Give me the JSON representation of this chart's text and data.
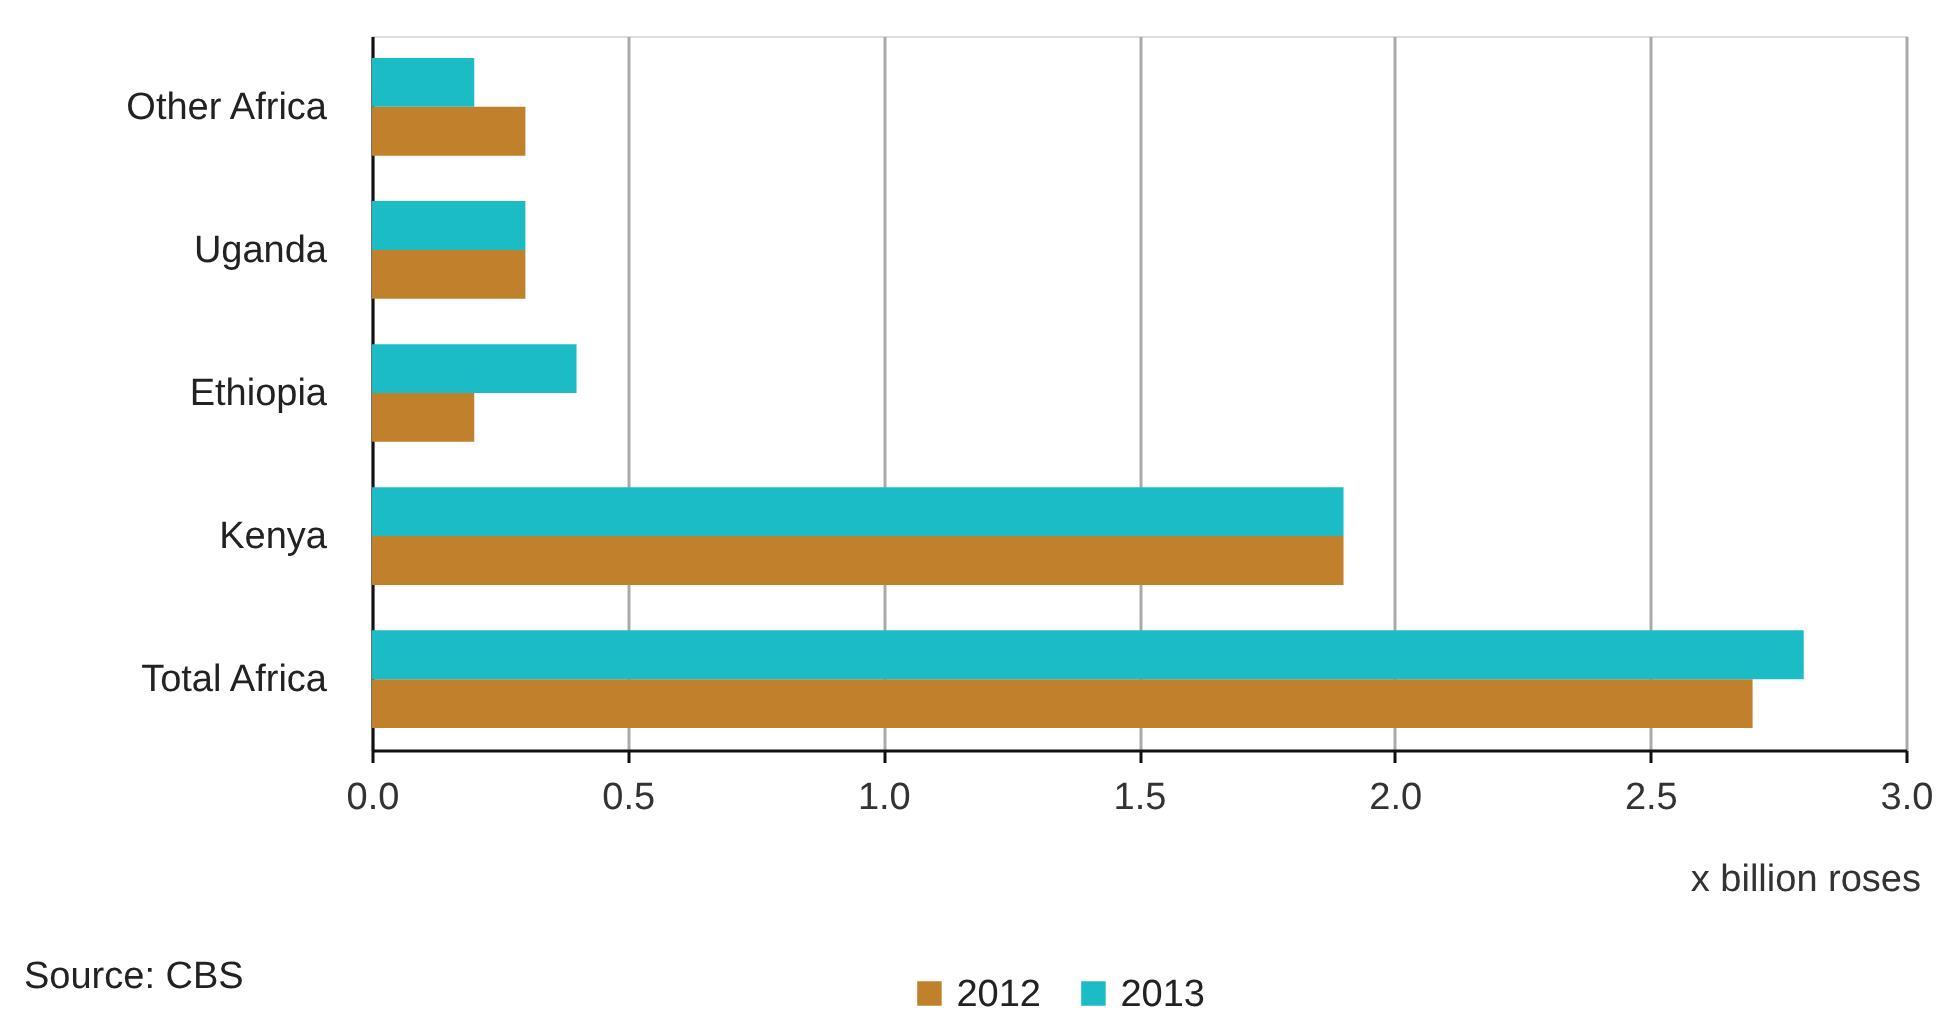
{
  "chart_data": {
    "type": "bar",
    "orientation": "horizontal",
    "categories": [
      "Other Africa",
      "Uganda",
      "Ethiopia",
      "Kenya",
      "Total Africa"
    ],
    "series": [
      {
        "name": "2012",
        "color": "#c1812c",
        "values": [
          0.3,
          0.3,
          0.2,
          1.9,
          2.7
        ]
      },
      {
        "name": "2013",
        "color": "#1bbcc5",
        "values": [
          0.2,
          0.3,
          0.4,
          1.9,
          2.8
        ]
      }
    ],
    "xlim": [
      0,
      3
    ],
    "xticks": [
      {
        "value": 0,
        "label": "0.0"
      },
      0.5,
      {
        "value": 1,
        "label": "1.0"
      },
      1.5,
      {
        "value": 2,
        "label": "2.0"
      },
      2.5,
      {
        "value": 3,
        "label": "3.0"
      }
    ],
    "xlabel": "x billion roses",
    "annotations": [
      "Source: CBS"
    ],
    "grid": "x",
    "legend": "bottom"
  }
}
